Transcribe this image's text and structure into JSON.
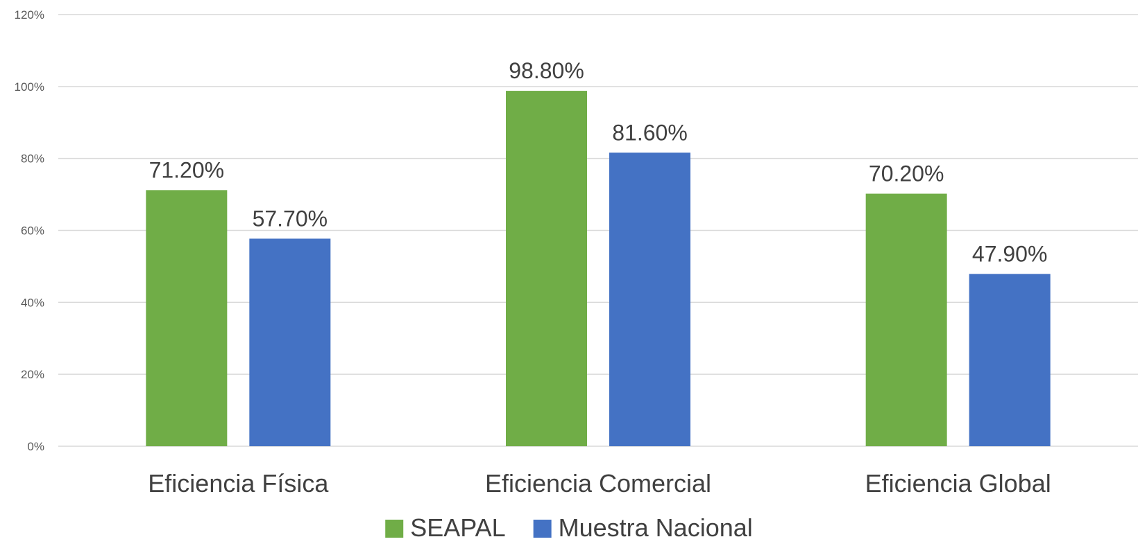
{
  "chart_data": {
    "type": "bar",
    "categories": [
      "Eficiencia Física",
      "Eficiencia Comercial",
      "Eficiencia Global"
    ],
    "series": [
      {
        "name": "SEAPAL",
        "color": "#70ad47",
        "values": [
          71.2,
          98.8,
          70.2
        ],
        "labels": [
          "71.20%",
          "98.80%",
          "70.20%"
        ]
      },
      {
        "name": "Muestra Nacional",
        "color": "#4472c4",
        "values": [
          57.7,
          81.6,
          47.9
        ],
        "labels": [
          "57.70%",
          "81.60%",
          "47.90%"
        ]
      }
    ],
    "y_ticks": [
      {
        "value": 0,
        "label": "0%"
      },
      {
        "value": 20,
        "label": "20%"
      },
      {
        "value": 40,
        "label": "40%"
      },
      {
        "value": 60,
        "label": "60%"
      },
      {
        "value": 80,
        "label": "80%"
      },
      {
        "value": 100,
        "label": "100%"
      },
      {
        "value": 120,
        "label": "120%"
      }
    ],
    "ylim": [
      0,
      120
    ],
    "grid": true,
    "legend_position": "bottom",
    "gridline_color": "#d9d9d9"
  }
}
